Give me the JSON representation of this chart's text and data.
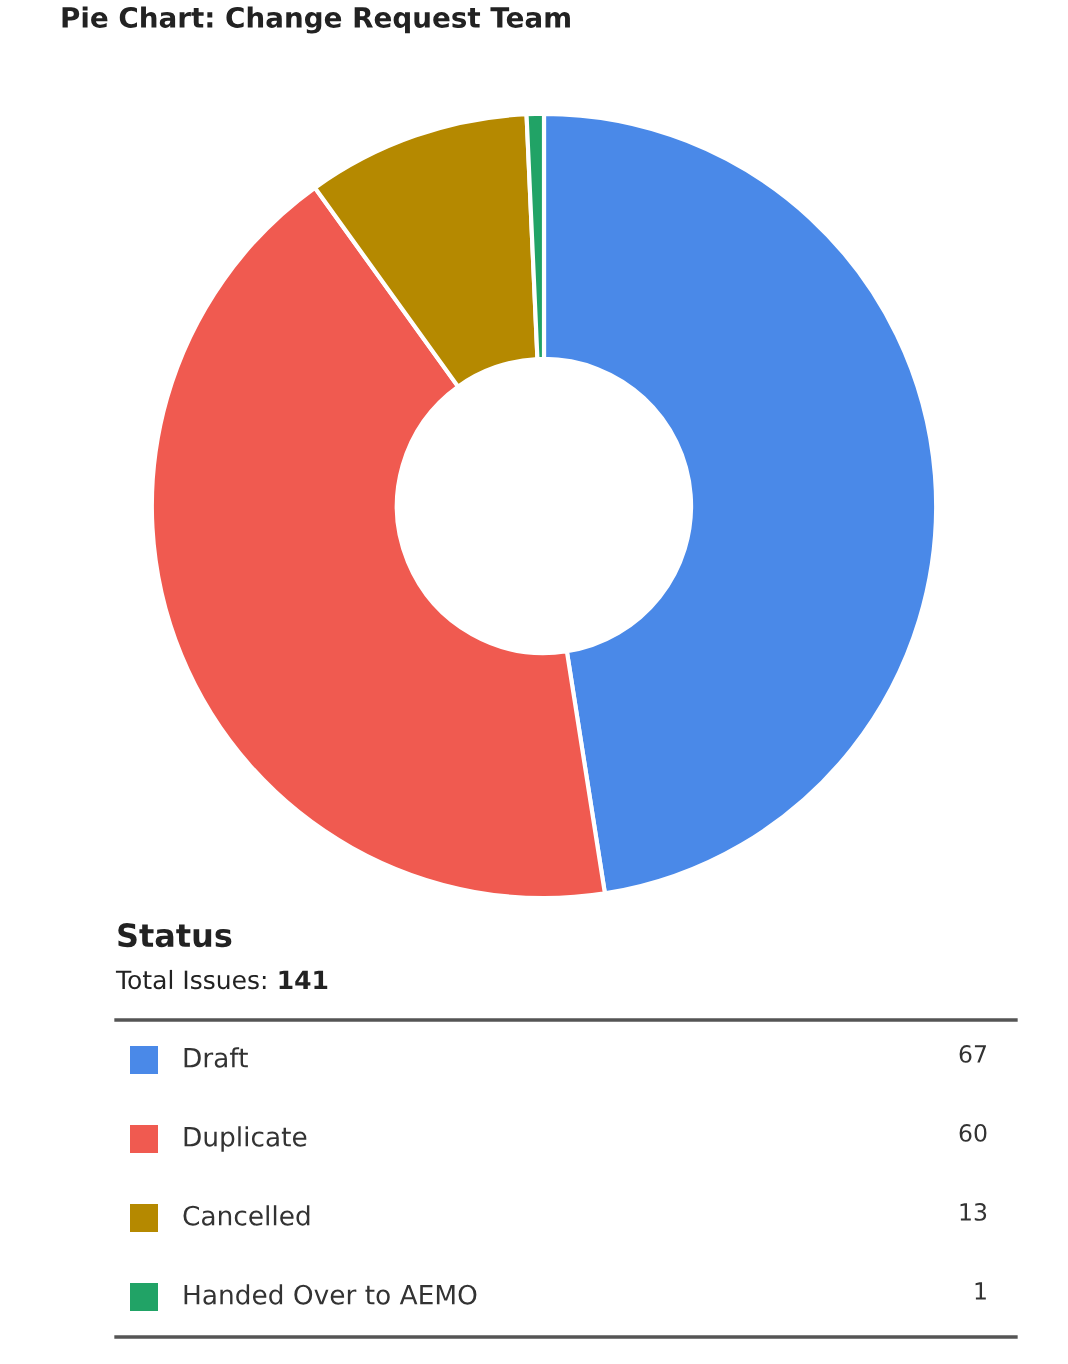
{
  "chart_data": {
    "type": "donut",
    "title": "Pie Chart: Change Request Team",
    "legend_title": "Status",
    "annotations": [
      "Total Issues:",
      "141"
    ],
    "categories": [
      "Draft",
      "Duplicate",
      "Cancelled",
      "Handed Over to AEMO"
    ],
    "values": [
      67,
      60,
      13,
      1
    ],
    "colors": [
      "#4a89e8",
      "#f05a50",
      "#b58900",
      "#21a366"
    ],
    "data_labels": true,
    "legend": "bottom"
  }
}
